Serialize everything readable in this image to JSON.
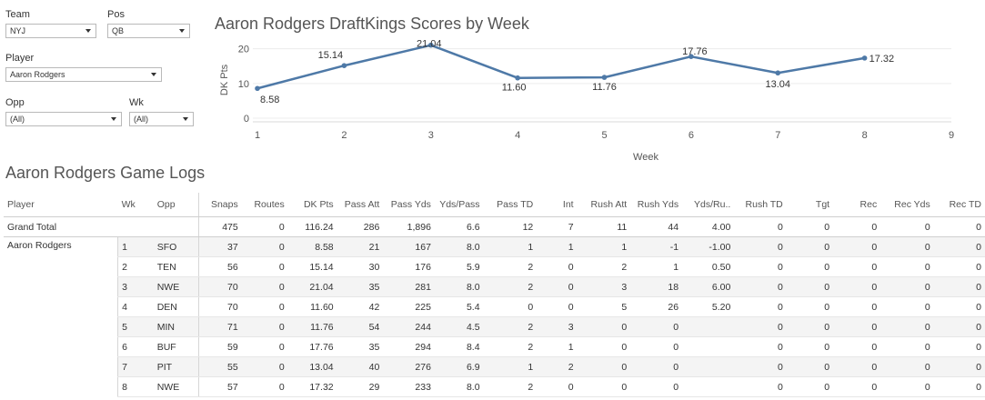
{
  "filters": {
    "team": {
      "label": "Team",
      "value": "NYJ"
    },
    "pos": {
      "label": "Pos",
      "value": "QB"
    },
    "player": {
      "label": "Player",
      "value": "Aaron Rodgers"
    },
    "opp": {
      "label": "Opp",
      "value": "(All)"
    },
    "wk": {
      "label": "Wk",
      "value": "(All)"
    }
  },
  "chart_title": "Aaron Rodgers DraftKings Scores by Week",
  "chart_data": {
    "type": "line",
    "title": "Aaron Rodgers DraftKings Scores by Week",
    "xlabel": "Week",
    "ylabel": "DK Pts",
    "x": [
      1,
      2,
      3,
      4,
      5,
      6,
      7,
      8
    ],
    "y": [
      8.58,
      15.14,
      21.04,
      11.6,
      11.76,
      17.76,
      13.04,
      17.32
    ],
    "data_labels": [
      "8.58",
      "15.14",
      "21.04",
      "11.60",
      "11.76",
      "17.76",
      "13.04",
      "17.32"
    ],
    "xlim": [
      1,
      9
    ],
    "ylim": [
      0,
      22
    ],
    "xticks": [
      "1",
      "2",
      "3",
      "4",
      "5",
      "6",
      "7",
      "8",
      "9"
    ],
    "yticks": [
      "0",
      "10",
      "20"
    ],
    "grid": "horizontal",
    "line_color": "#4e79a7"
  },
  "table_title": "Aaron Rodgers Game Logs",
  "table": {
    "columns": [
      "Player",
      "Wk",
      "Opp",
      "Snaps",
      "Routes",
      "DK Pts",
      "Pass Att",
      "Pass Yds",
      "Yds/Pass",
      "Pass TD",
      "Int",
      "Rush Att",
      "Rush Yds",
      "Yds/Ru..",
      "Rush TD",
      "Tgt",
      "Rec",
      "Rec Yds",
      "Rec TD"
    ],
    "grand_total": {
      "label": "Grand Total",
      "values": [
        "475",
        "0",
        "116.24",
        "286",
        "1,896",
        "6.6",
        "12",
        "7",
        "11",
        "44",
        "4.00",
        "0",
        "0",
        "0",
        "0",
        "0"
      ]
    },
    "player_name": "Aaron Rodgers",
    "rows": [
      {
        "wk": "1",
        "opp": "SFO",
        "values": [
          "37",
          "0",
          "8.58",
          "21",
          "167",
          "8.0",
          "1",
          "1",
          "1",
          "-1",
          "-1.00",
          "0",
          "0",
          "0",
          "0",
          "0"
        ]
      },
      {
        "wk": "2",
        "opp": "TEN",
        "values": [
          "56",
          "0",
          "15.14",
          "30",
          "176",
          "5.9",
          "2",
          "0",
          "2",
          "1",
          "0.50",
          "0",
          "0",
          "0",
          "0",
          "0"
        ]
      },
      {
        "wk": "3",
        "opp": "NWE",
        "values": [
          "70",
          "0",
          "21.04",
          "35",
          "281",
          "8.0",
          "2",
          "0",
          "3",
          "18",
          "6.00",
          "0",
          "0",
          "0",
          "0",
          "0"
        ]
      },
      {
        "wk": "4",
        "opp": "DEN",
        "values": [
          "70",
          "0",
          "11.60",
          "42",
          "225",
          "5.4",
          "0",
          "0",
          "5",
          "26",
          "5.20",
          "0",
          "0",
          "0",
          "0",
          "0"
        ]
      },
      {
        "wk": "5",
        "opp": "MIN",
        "values": [
          "71",
          "0",
          "11.76",
          "54",
          "244",
          "4.5",
          "2",
          "3",
          "0",
          "0",
          "",
          "0",
          "0",
          "0",
          "0",
          "0"
        ]
      },
      {
        "wk": "6",
        "opp": "BUF",
        "values": [
          "59",
          "0",
          "17.76",
          "35",
          "294",
          "8.4",
          "2",
          "1",
          "0",
          "0",
          "",
          "0",
          "0",
          "0",
          "0",
          "0"
        ]
      },
      {
        "wk": "7",
        "opp": "PIT",
        "values": [
          "55",
          "0",
          "13.04",
          "40",
          "276",
          "6.9",
          "1",
          "2",
          "0",
          "0",
          "",
          "0",
          "0",
          "0",
          "0",
          "0"
        ]
      },
      {
        "wk": "8",
        "opp": "NWE",
        "values": [
          "57",
          "0",
          "17.32",
          "29",
          "233",
          "8.0",
          "2",
          "0",
          "0",
          "0",
          "",
          "0",
          "0",
          "0",
          "0",
          "0"
        ]
      }
    ]
  }
}
